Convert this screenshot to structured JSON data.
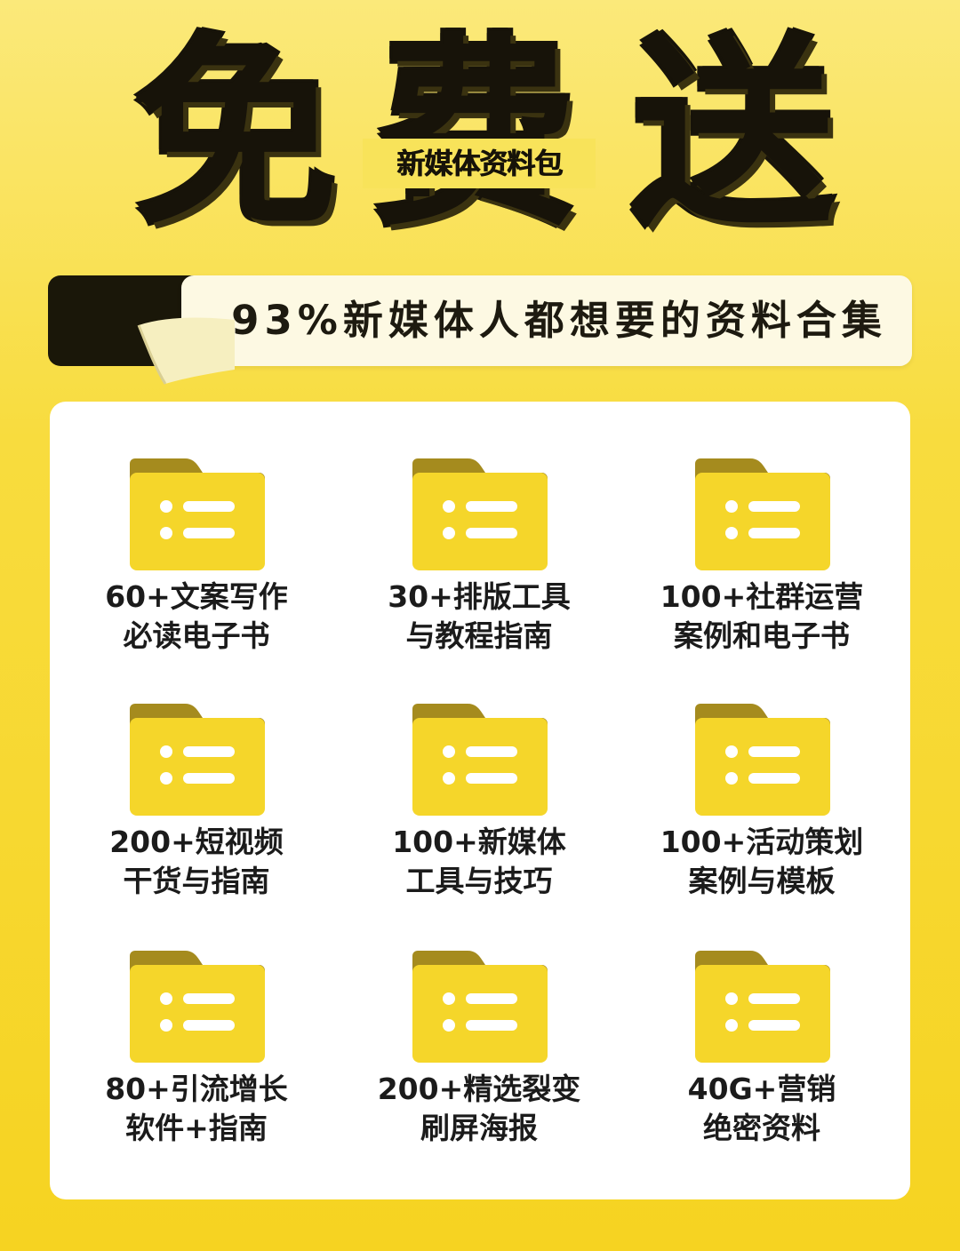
{
  "headline": {
    "char1": "免",
    "char2": "费",
    "char3": "送",
    "badge": "新媒体资料包"
  },
  "tagline": "93%新媒体人都想要的资料合集",
  "colors": {
    "background": "#f8dc3e",
    "dark": "#171309",
    "folder_body": "#f5d62a",
    "folder_tab": "#a58b1e"
  },
  "items": [
    {
      "line1": "60+文案写作",
      "line2": "必读电子书",
      "icon": "folder-list-icon"
    },
    {
      "line1": "30+排版工具",
      "line2": "与教程指南",
      "icon": "folder-list-icon"
    },
    {
      "line1": "100+社群运营",
      "line2": "案例和电子书",
      "icon": "folder-list-icon"
    },
    {
      "line1": "200+短视频",
      "line2": "干货与指南",
      "icon": "folder-list-icon"
    },
    {
      "line1": "100+新媒体",
      "line2": "工具与技巧",
      "icon": "folder-list-icon"
    },
    {
      "line1": "100+活动策划",
      "line2": "案例与模板",
      "icon": "folder-list-icon"
    },
    {
      "line1": "80+引流增长",
      "line2": "软件+指南",
      "icon": "folder-list-icon"
    },
    {
      "line1": "200+精选裂变",
      "line2": "刷屏海报",
      "icon": "folder-list-icon"
    },
    {
      "line1": "40G+营销",
      "line2": "绝密资料",
      "icon": "folder-list-icon"
    }
  ]
}
